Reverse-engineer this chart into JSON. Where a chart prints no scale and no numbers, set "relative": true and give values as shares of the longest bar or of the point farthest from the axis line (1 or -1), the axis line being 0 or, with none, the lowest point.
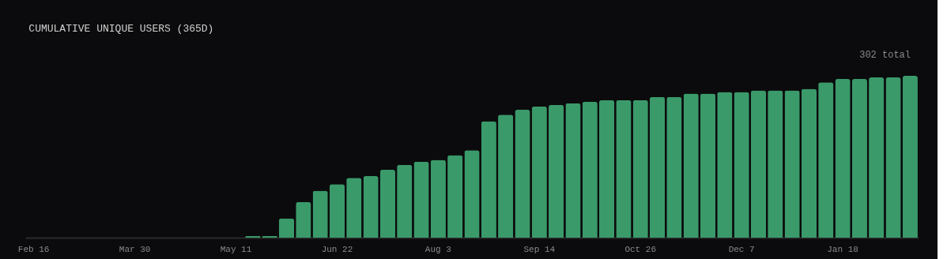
{
  "chart_data": {
    "type": "bar",
    "title": "CUMULATIVE UNIQUE USERS (365D)",
    "annotations": [
      "302 total"
    ],
    "relative": true,
    "color": "#3a9a6a",
    "categories": [
      "Feb 16",
      null,
      null,
      null,
      null,
      null,
      "Mar 30",
      null,
      null,
      null,
      null,
      null,
      "May 11",
      null,
      null,
      null,
      null,
      null,
      "Jun 22",
      null,
      null,
      null,
      null,
      null,
      "Aug 3",
      null,
      null,
      null,
      null,
      null,
      "Sep 14",
      null,
      null,
      null,
      null,
      null,
      "Oct 26",
      null,
      null,
      null,
      null,
      null,
      "Dec 7",
      null,
      null,
      null,
      null,
      null,
      "Jan 18",
      null,
      null,
      null,
      null
    ],
    "values": [
      null,
      null,
      null,
      null,
      null,
      null,
      null,
      null,
      null,
      null,
      null,
      null,
      null,
      0.01,
      0.01,
      0.12,
      0.22,
      0.29,
      0.33,
      0.37,
      0.38,
      0.42,
      0.45,
      0.47,
      0.48,
      0.51,
      0.54,
      0.72,
      0.76,
      0.79,
      0.81,
      0.82,
      0.83,
      0.84,
      0.85,
      0.85,
      0.85,
      0.87,
      0.87,
      0.89,
      0.89,
      0.9,
      0.9,
      0.91,
      0.91,
      0.91,
      0.92,
      0.96,
      0.98,
      0.98,
      0.99,
      0.99,
      1
    ]
  }
}
